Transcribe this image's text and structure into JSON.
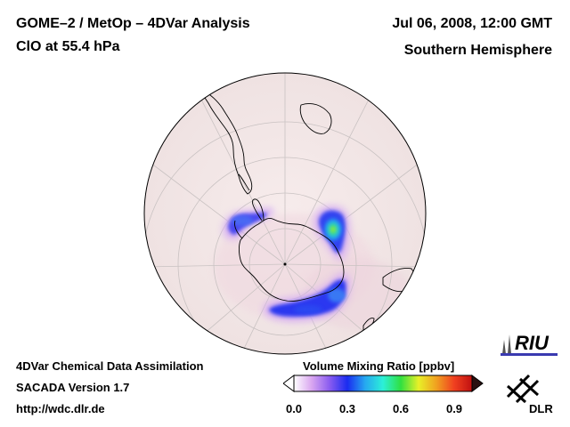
{
  "header": {
    "title_line1": "GOME–2 / MetOp – 4DVar Analysis",
    "title_line2": "ClO at 55.4 hPa",
    "date": "Jul 06, 2008, 12:00 GMT",
    "region": "Southern Hemisphere"
  },
  "footer": {
    "line1": "4DVar Chemical Data Assimilation",
    "line2": "SACADA Version 1.7",
    "line3": "http://wdc.dlr.de"
  },
  "colorbar": {
    "title": "Volume Mixing Ratio [ppbv]",
    "ticks": [
      {
        "label": "0.0",
        "value": 0.0
      },
      {
        "label": "0.3",
        "value": 0.3
      },
      {
        "label": "0.6",
        "value": 0.6
      },
      {
        "label": "0.9",
        "value": 0.9
      }
    ],
    "range": [
      0.0,
      1.0
    ],
    "colors": [
      "#ffffff",
      "#d9a6f0",
      "#8a5cf0",
      "#1a2cf0",
      "#26a8f0",
      "#2cf0d8",
      "#30e040",
      "#e8f028",
      "#f0a020",
      "#f04020",
      "#c01010"
    ]
  },
  "logos": {
    "riu": "RIU",
    "dlr": "DLR"
  },
  "map": {
    "projection": "orthographic, south polar",
    "background_color": "#f3e6e6",
    "coast_color": "#000000",
    "grid_color": "#c9c2c2"
  }
}
